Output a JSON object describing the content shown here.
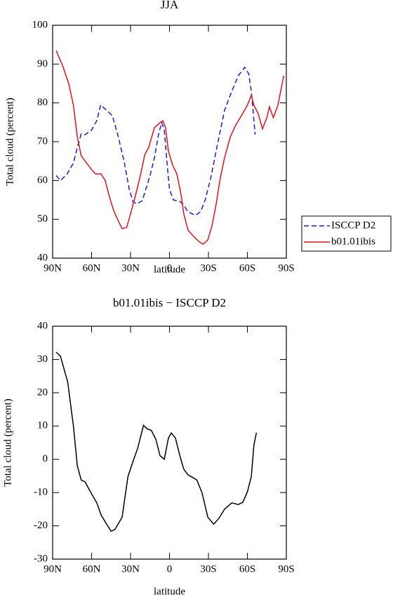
{
  "chart_data": [
    {
      "type": "line",
      "title": "JJA",
      "xlabel": "latitude",
      "ylabel": "Total cloud (percent)",
      "xlim": [
        90,
        -90
      ],
      "xticks": [
        {
          "value": 90,
          "label": "90N"
        },
        {
          "value": 60,
          "label": "60N"
        },
        {
          "value": 30,
          "label": "30N"
        },
        0,
        {
          "value": -30,
          "label": "30S"
        },
        {
          "value": -60,
          "label": "60S"
        },
        {
          "value": -90,
          "label": "90S"
        }
      ],
      "ylim": [
        40,
        100
      ],
      "yticks": [
        40,
        50,
        60,
        70,
        80,
        90,
        100
      ],
      "legend": "right",
      "series": [
        {
          "name": "ISCCP D2",
          "color": "#1c1cd8",
          "dash": true,
          "x": [
            87.3,
            84,
            79,
            74,
            71,
            68,
            65,
            60,
            56,
            53,
            44,
            40,
            35,
            31,
            28,
            25,
            21,
            18,
            15,
            11.6,
            8.4,
            6,
            4,
            2,
            0,
            -3,
            -8,
            -11,
            -14,
            -20,
            -24,
            -27.5,
            -31.6,
            -37,
            -42.4,
            -48,
            -53,
            -58,
            -61,
            -63,
            -66
          ],
          "values": [
            61.3,
            60,
            61.6,
            64.5,
            68.5,
            72,
            71.8,
            73,
            75.4,
            79.5,
            76.7,
            72,
            65,
            57.7,
            54.5,
            54,
            54.8,
            58,
            61.3,
            65.8,
            72,
            74.9,
            73,
            65,
            57.7,
            55,
            54.6,
            53.7,
            52,
            51,
            52,
            55,
            60.4,
            69.4,
            78,
            83,
            87,
            89.2,
            87.5,
            83,
            71.8
          ]
        },
        {
          "name": "b01.01ibis",
          "color": "#e0141c",
          "dash": false,
          "x": [
            87.3,
            82,
            77.6,
            74,
            71,
            68,
            65,
            60,
            57,
            52.7,
            49.5,
            46,
            43,
            40,
            36.5,
            33,
            30,
            25.7,
            22.4,
            19,
            16,
            11.6,
            7.3,
            5.1,
            3,
            0.8,
            -2.4,
            -5.7,
            -9,
            -11,
            -14.3,
            -18.6,
            -23,
            -26,
            -29.5,
            -32.7,
            -36,
            -39,
            -42.4,
            -46.8,
            -51,
            -55.4,
            -60,
            -63,
            -65,
            -68.4,
            -71.6,
            -75,
            -77,
            -80,
            -83.5,
            -88
          ],
          "values": [
            93.5,
            89.3,
            85,
            79.4,
            71.2,
            66.4,
            65,
            62.8,
            61.7,
            61.7,
            60,
            55.5,
            52.3,
            50,
            47.6,
            47.9,
            51.4,
            56.8,
            61.3,
            66.7,
            68.5,
            73.6,
            74.9,
            75.4,
            73.6,
            67.6,
            64,
            61.7,
            56.3,
            51.4,
            47.2,
            45.6,
            44.2,
            43.6,
            44.7,
            48.3,
            54,
            60.4,
            65.8,
            71.2,
            74.3,
            76.7,
            79.4,
            82,
            79.4,
            77.2,
            73.3,
            76.2,
            79,
            76.2,
            79.4,
            87
          ]
        }
      ]
    },
    {
      "type": "line",
      "title": "b01.01ibis − ISCCP D2",
      "xlabel": "latitude",
      "ylabel": "Total cloud (percent)",
      "xlim": [
        90,
        -90
      ],
      "xticks": [
        {
          "value": 90,
          "label": "90N"
        },
        {
          "value": 60,
          "label": "60N"
        },
        {
          "value": 30,
          "label": "30N"
        },
        0,
        {
          "value": -30,
          "label": "30S"
        },
        {
          "value": -60,
          "label": "60S"
        },
        {
          "value": -90,
          "label": "90S"
        }
      ],
      "ylim": [
        -30,
        40
      ],
      "yticks": [
        -30,
        -20,
        -10,
        0,
        10,
        20,
        30,
        40
      ],
      "series": [
        {
          "color": "#000000",
          "dash": false,
          "x": [
            87.3,
            84,
            78.4,
            74,
            71,
            68,
            65,
            60,
            56,
            52.7,
            49.5,
            45,
            42,
            36.5,
            32,
            28,
            24.6,
            20,
            17,
            14,
            10.5,
            7.3,
            4,
            0.8,
            -1.4,
            -4.6,
            -8,
            -11,
            -14.3,
            -17.6,
            -21,
            -25,
            -29.5,
            -34,
            -38,
            -42.4,
            -48,
            -53,
            -56.5,
            -60,
            -63,
            -65,
            -67
          ],
          "values": [
            32.2,
            31,
            23.2,
            10,
            -2,
            -6.2,
            -6.8,
            -10.4,
            -13.1,
            -16.7,
            -18.8,
            -21.6,
            -21.1,
            -17.4,
            -5.2,
            -0.5,
            3.2,
            10.2,
            9.1,
            8.7,
            6,
            1.1,
            0,
            6.4,
            7.9,
            6.4,
            1.1,
            -3,
            -4.7,
            -5.4,
            -6.2,
            -10,
            -17.4,
            -19.5,
            -17.8,
            -15,
            -13.1,
            -13.6,
            -12.9,
            -9.8,
            -5.2,
            4.3,
            8
          ]
        }
      ]
    }
  ]
}
